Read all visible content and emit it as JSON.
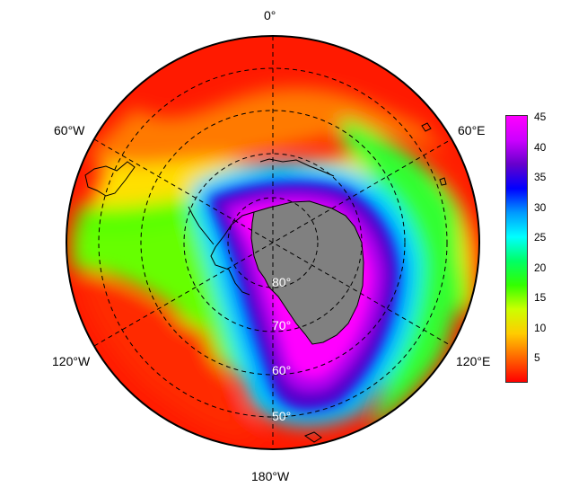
{
  "map": {
    "projection": "south-polar-stereographic",
    "lon_labels": {
      "top": "0°",
      "upper_left": "60°W",
      "upper_right": "60°E",
      "lower_left": "120°W",
      "lower_right": "120°E",
      "bottom": "180°W"
    },
    "lat_labels": [
      "80°",
      "70°",
      "60°",
      "50°"
    ],
    "missing_color": "#808080",
    "field_description": "Ozone-hole-like field: high values (magenta/purple) over Antarctica surrounded by a cyan/green transition ring and low (red) values at outer edge"
  },
  "colorbar": {
    "ticks": [
      "45",
      "40",
      "35",
      "30",
      "25",
      "20",
      "15",
      "10",
      "5"
    ],
    "min": 1,
    "max": 45,
    "colors": [
      "#ff0000",
      "#ff6600",
      "#ffcc00",
      "#ccff00",
      "#33ff00",
      "#00ff66",
      "#00ffff",
      "#0099ff",
      "#0000ff",
      "#6600cc",
      "#cc00ff",
      "#ff00ff"
    ]
  }
}
